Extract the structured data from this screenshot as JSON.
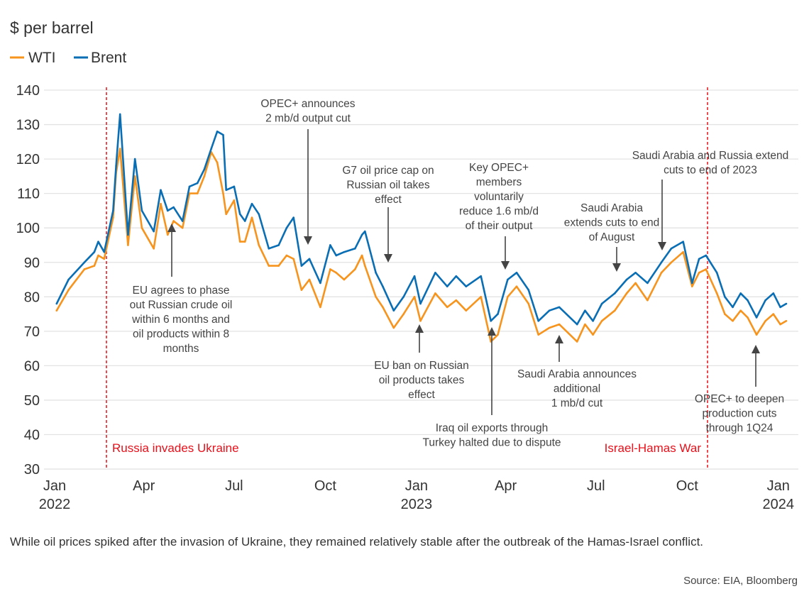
{
  "chart_data": {
    "type": "line",
    "ylabel": "$ per barrel",
    "ylim": [
      30,
      140
    ],
    "yticks": [
      30,
      40,
      50,
      60,
      70,
      80,
      90,
      100,
      110,
      120,
      130,
      140
    ],
    "xticks": [
      {
        "date": "2022-01-01",
        "label": "Jan",
        "year": "2022"
      },
      {
        "date": "2022-04-01",
        "label": "Apr",
        "year": ""
      },
      {
        "date": "2022-07-01",
        "label": "Jul",
        "year": ""
      },
      {
        "date": "2022-10-01",
        "label": "Oct",
        "year": ""
      },
      {
        "date": "2023-01-01",
        "label": "Jan",
        "year": "2023"
      },
      {
        "date": "2023-04-01",
        "label": "Apr",
        "year": ""
      },
      {
        "date": "2023-07-01",
        "label": "Jul",
        "year": ""
      },
      {
        "date": "2023-10-01",
        "label": "Oct",
        "year": ""
      },
      {
        "date": "2024-01-01",
        "label": "Jan",
        "year": "2024"
      }
    ],
    "grid": "horizontal",
    "legend_placement": "top-left",
    "x": [
      "2022-01-03",
      "2022-01-15",
      "2022-01-31",
      "2022-02-10",
      "2022-02-14",
      "2022-02-20",
      "2022-03-01",
      "2022-03-04",
      "2022-03-08",
      "2022-03-16",
      "2022-03-23",
      "2022-03-30",
      "2022-04-11",
      "2022-04-18",
      "2022-04-25",
      "2022-05-01",
      "2022-05-10",
      "2022-05-17",
      "2022-05-25",
      "2022-06-01",
      "2022-06-08",
      "2022-06-14",
      "2022-06-20",
      "2022-06-23",
      "2022-07-01",
      "2022-07-07",
      "2022-07-12",
      "2022-07-19",
      "2022-07-26",
      "2022-08-05",
      "2022-08-15",
      "2022-08-23",
      "2022-08-30",
      "2022-09-07",
      "2022-09-15",
      "2022-09-26",
      "2022-10-06",
      "2022-10-12",
      "2022-10-20",
      "2022-10-31",
      "2022-11-07",
      "2022-11-10",
      "2022-11-21",
      "2022-11-28",
      "2022-12-09",
      "2022-12-19",
      "2022-12-30",
      "2023-01-05",
      "2023-01-20",
      "2023-02-01",
      "2023-02-10",
      "2023-02-20",
      "2023-03-07",
      "2023-03-17",
      "2023-03-24",
      "2023-04-03",
      "2023-04-12",
      "2023-04-24",
      "2023-05-04",
      "2023-05-15",
      "2023-05-25",
      "2023-06-12",
      "2023-06-20",
      "2023-06-28",
      "2023-07-07",
      "2023-07-20",
      "2023-08-01",
      "2023-08-10",
      "2023-08-22",
      "2023-09-05",
      "2023-09-15",
      "2023-09-27",
      "2023-10-06",
      "2023-10-13",
      "2023-10-20",
      "2023-10-31",
      "2023-11-08",
      "2023-11-16",
      "2023-11-24",
      "2023-12-01",
      "2023-12-10",
      "2023-12-19",
      "2023-12-27",
      "2024-01-03",
      "2024-01-09"
    ],
    "series": [
      {
        "name": "WTI",
        "color": "#f7941d",
        "values": [
          76,
          82,
          88,
          89,
          92,
          91,
          103,
          116,
          123,
          95,
          115,
          100,
          94,
          107,
          98,
          102,
          100,
          110,
          110,
          115,
          122,
          119,
          110,
          104,
          108,
          96,
          96,
          103,
          95,
          89,
          89,
          92,
          91,
          82,
          85,
          77,
          88,
          87,
          85,
          88,
          92,
          89,
          80,
          77,
          71,
          75,
          80,
          73,
          81,
          77,
          79,
          76,
          80,
          67,
          69,
          80,
          83,
          78,
          69,
          71,
          72,
          67,
          72,
          69,
          73,
          76,
          81,
          84,
          79,
          87,
          90,
          93,
          83,
          87,
          88,
          81,
          75,
          73,
          76,
          74,
          69,
          73,
          75,
          72,
          73
        ]
      },
      {
        "name": "Brent",
        "color": "#0a6eb4",
        "values": [
          78,
          85,
          90,
          93,
          96,
          93,
          105,
          118,
          133,
          98,
          120,
          105,
          99,
          111,
          105,
          106,
          102,
          112,
          113,
          117,
          123,
          128,
          127,
          111,
          112,
          104,
          102,
          107,
          104,
          94,
          95,
          100,
          103,
          89,
          91,
          84,
          95,
          92,
          93,
          94,
          98,
          99,
          87,
          83,
          76,
          80,
          86,
          78,
          87,
          83,
          86,
          83,
          86,
          73,
          75,
          85,
          87,
          82,
          73,
          76,
          77,
          72,
          76,
          73,
          78,
          81,
          85,
          87,
          84,
          90,
          94,
          96,
          84,
          91,
          92,
          87,
          80,
          77,
          81,
          79,
          74,
          79,
          81,
          77,
          78
        ]
      }
    ],
    "events": [
      {
        "date": "2022-02-24",
        "label": "Russia invades Ukraine",
        "color": "#e8101a"
      },
      {
        "date": "2023-10-07",
        "label": "Israel-Hamas War",
        "color": "#e8101a"
      }
    ],
    "annotations": [
      {
        "lines": [
          "OPEC+ announces",
          "2 mb/d output cut"
        ]
      },
      {
        "lines": [
          "G7 oil price cap on",
          "Russian oil takes",
          "effect"
        ]
      },
      {
        "lines": [
          "Key OPEC+",
          "members",
          "voluntarily",
          "reduce 1.6 mb/d",
          "of their output"
        ]
      },
      {
        "lines": [
          "Saudi Arabia",
          "extends cuts to end",
          "of August"
        ]
      },
      {
        "lines": [
          "Saudi Arabia and Russia extend",
          "cuts to end of 2023"
        ]
      },
      {
        "lines": [
          "EU agrees to phase",
          "out Russian crude oil",
          "within 6 months and",
          "oil products within 8",
          "months"
        ]
      },
      {
        "lines": [
          "EU ban on Russian",
          "oil products takes",
          "effect"
        ]
      },
      {
        "lines": [
          "Iraq oil exports through",
          "Turkey halted due to dispute"
        ]
      },
      {
        "lines": [
          "Saudi Arabia announces",
          "additional",
          "1 mb/d cut"
        ]
      },
      {
        "lines": [
          "OPEC+ to deepen",
          "production cuts",
          "through 1Q24"
        ]
      }
    ]
  },
  "caption": "While oil prices spiked after the invasion of Ukraine, they remained relatively stable after the outbreak of the Hamas-Israel conflict.",
  "source": "Source: EIA, Bloomberg"
}
